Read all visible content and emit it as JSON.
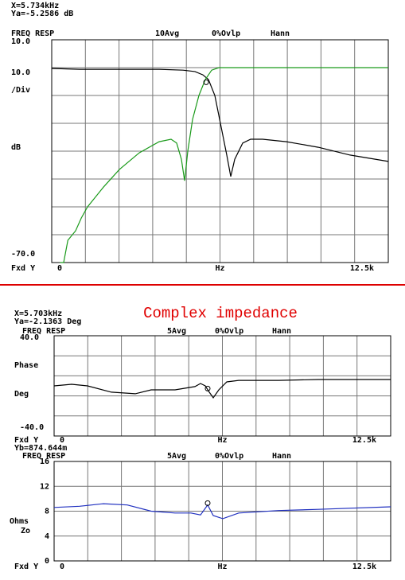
{
  "chart_data": [
    {
      "type": "line",
      "readouts": [
        "X=5.734kHz",
        "Ya=-5.2586 dB"
      ],
      "measurement": "FREQ RESP",
      "averaging": "10Avg",
      "overlap": "0%Ovlp",
      "window": "Hann",
      "ylabels": [
        "10.0",
        "/Div",
        "dB"
      ],
      "xlabel": "Hz",
      "y_mode": "Fxd Y",
      "xlim": [
        0,
        12500
      ],
      "ylim": [
        -70,
        10
      ],
      "xticks": [
        0,
        {
          "value": 12500,
          "label": "12.5k"
        }
      ],
      "yticks": [
        {
          "value": -70,
          "label": "-70.0"
        },
        {
          "value": 10,
          "label": "10.0"
        }
      ],
      "xgrid": [
        1250,
        2500,
        3750,
        5000,
        6250,
        7500,
        8750,
        10000,
        11250
      ],
      "ygrid": [
        -60,
        -50,
        -40,
        -30,
        -20,
        -10,
        0
      ],
      "cursor": {
        "x": 5734,
        "y": -5.2586
      },
      "series": [
        {
          "color": "#000000",
          "x": [
            0,
            1034,
            2512,
            3989,
            4876,
            5319,
            5615,
            5821,
            6058,
            6294,
            6501,
            6649,
            6797,
            7092,
            7388,
            7831,
            8718,
            9900,
            11081,
            12500
          ],
          "values": [
            -0.3,
            -0.6,
            -0.6,
            -0.6,
            -0.9,
            -1.4,
            -2.6,
            -4.3,
            -10,
            -21.4,
            -31.4,
            -39.1,
            -32.9,
            -27.1,
            -25.7,
            -25.7,
            -26.6,
            -28.6,
            -31.4,
            -33.7
          ]
        },
        {
          "color": "#1a9a1a",
          "x": [
            300,
            443,
            600,
            887,
            1100,
            1330,
            1921,
            2512,
            3251,
            3989,
            4433,
            4639,
            4817,
            4935,
            5053,
            5230,
            5467,
            5703,
            5940,
            6206,
            6944,
            12500
          ],
          "values": [
            -70,
            -70,
            -62,
            -58.6,
            -54,
            -50,
            -42.9,
            -36.6,
            -30.6,
            -26.6,
            -25.7,
            -27.1,
            -32.9,
            -40.6,
            -30,
            -18.6,
            -10,
            -4.3,
            -0.9,
            0,
            0,
            0
          ]
        }
      ]
    },
    {
      "type": "line",
      "title": "Complex impedance",
      "readouts": [
        "X=5.703kHz",
        "Ya=-2.1363 Deg"
      ],
      "measurement": "FREQ RESP",
      "averaging": "5Avg",
      "overlap": "0%Ovlp",
      "window": "Hann",
      "ylabels": [
        "Phase",
        "Deg"
      ],
      "xlabel": "Hz",
      "y_mode": "Fxd Y",
      "xlim": [
        0,
        12500
      ],
      "ylim": [
        -40,
        40
      ],
      "xticks": [
        0,
        {
          "value": 12500,
          "label": "12.5k"
        }
      ],
      "yticks": [
        {
          "value": -40,
          "label": "-40.0"
        },
        {
          "value": 40,
          "label": "40.0"
        }
      ],
      "xgrid": [
        1250,
        2500,
        3750,
        5000,
        6250,
        7500,
        8750,
        10000,
        11250
      ],
      "ygrid": [
        -24,
        -8,
        8,
        24
      ],
      "cursor": {
        "x": 5703,
        "y": -2.1363
      },
      "series": [
        {
          "color": "#000000",
          "x": [
            0,
            650,
            1241,
            2128,
            3014,
            3605,
            4492,
            5230,
            5437,
            5615,
            5762,
            5910,
            6117,
            6412,
            6856,
            8333,
            9811,
            12500
          ],
          "values": [
            0,
            1.3,
            0,
            -5,
            -6.3,
            -3.2,
            -3.2,
            -0.6,
            1.9,
            0,
            -5,
            -9.5,
            -3.2,
            3.2,
            4.4,
            4.4,
            5.1,
            5.1
          ]
        }
      ]
    },
    {
      "type": "line",
      "readouts": [
        "Yb=874.644m"
      ],
      "measurement": "FREQ RESP",
      "averaging": "5Avg",
      "overlap": "0%Ovlp",
      "window": "Hann",
      "ylabels": [
        "Ohms",
        "Zo"
      ],
      "xlabel": "Hz",
      "y_mode": "Fxd Y",
      "xlim": [
        0,
        12500
      ],
      "ylim": [
        0,
        16
      ],
      "xticks": [
        0,
        {
          "value": 12500,
          "label": "12.5k"
        }
      ],
      "yticks": [
        0,
        4,
        8,
        12,
        16
      ],
      "xgrid": [
        1250,
        2500,
        3750,
        5000,
        6250,
        7500,
        8750,
        10000,
        11250
      ],
      "ygrid": [
        4,
        8,
        12
      ],
      "cursor": {
        "x": 5703,
        "y": 9.3
      },
      "series": [
        {
          "color": "#2030c0",
          "x": [
            0,
            946,
            1832,
            2719,
            3605,
            4492,
            5083,
            5437,
            5703,
            5910,
            6265,
            6856,
            8333,
            9811,
            12500
          ],
          "values": [
            8.6,
            8.8,
            9.2,
            9.0,
            8.0,
            7.7,
            7.7,
            7.4,
            9.0,
            7.3,
            6.8,
            7.7,
            8.1,
            8.3,
            8.7
          ]
        }
      ]
    }
  ]
}
